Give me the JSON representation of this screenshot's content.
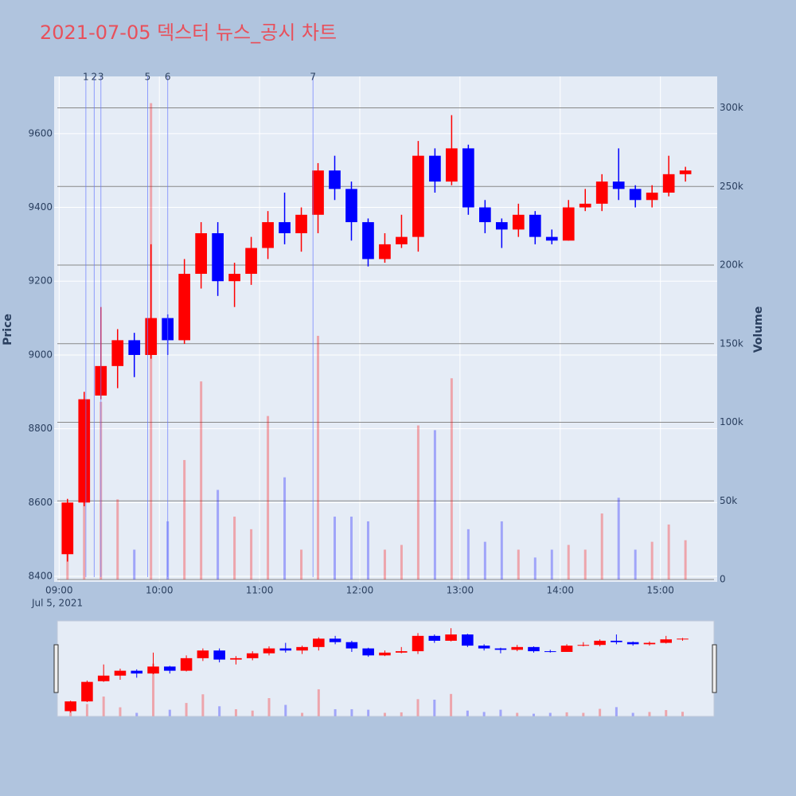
{
  "chart_data": {
    "type": "candlestick",
    "title": "2021-07-05 덱스터 뉴스_공시 차트",
    "x": [
      "09:00",
      "09:10",
      "09:20",
      "09:30",
      "09:40",
      "09:50",
      "10:00",
      "10:10",
      "10:20",
      "10:30",
      "10:40",
      "10:50",
      "11:00",
      "11:10",
      "11:20",
      "11:30",
      "11:40",
      "11:50",
      "12:00",
      "12:10",
      "12:20",
      "12:30",
      "12:40",
      "12:50",
      "13:00",
      "13:10",
      "13:20",
      "13:30",
      "13:40",
      "13:50",
      "14:00",
      "14:10",
      "14:20",
      "14:30",
      "14:40",
      "14:50",
      "15:00",
      "15:10"
    ],
    "open": [
      8460,
      8600,
      8890,
      8970,
      9040,
      9000,
      9100,
      9040,
      9220,
      9330,
      9200,
      9220,
      9290,
      9360,
      9330,
      9380,
      9500,
      9450,
      9360,
      9260,
      9300,
      9320,
      9540,
      9470,
      9560,
      9400,
      9360,
      9340,
      9380,
      9320,
      9310,
      9400,
      9410,
      9470,
      9450,
      9420,
      9440,
      9490
    ],
    "high": [
      8610,
      8900,
      9130,
      9070,
      9060,
      9300,
      9110,
      9260,
      9360,
      9360,
      9250,
      9320,
      9390,
      9440,
      9400,
      9520,
      9540,
      9470,
      9370,
      9330,
      9380,
      9580,
      9560,
      9650,
      9570,
      9420,
      9370,
      9410,
      9390,
      9340,
      9420,
      9450,
      9490,
      9560,
      9460,
      9460,
      9540,
      9510
    ],
    "low": [
      8440,
      8590,
      8880,
      8910,
      8940,
      8990,
      9000,
      9030,
      9180,
      9160,
      9130,
      9190,
      9260,
      9300,
      9280,
      9330,
      9420,
      9310,
      9240,
      9250,
      9290,
      9280,
      9440,
      9460,
      9380,
      9330,
      9290,
      9320,
      9300,
      9300,
      9310,
      9390,
      9390,
      9420,
      9400,
      9400,
      9430,
      9470
    ],
    "close": [
      8600,
      8880,
      8970,
      9040,
      9000,
      9100,
      9040,
      9220,
      9330,
      9200,
      9220,
      9290,
      9360,
      9330,
      9380,
      9500,
      9450,
      9360,
      9260,
      9300,
      9320,
      9540,
      9470,
      9560,
      9400,
      9360,
      9340,
      9380,
      9320,
      9310,
      9400,
      9410,
      9470,
      9450,
      9420,
      9440,
      9490,
      9500
    ],
    "volume": [
      34000,
      70000,
      113000,
      51000,
      19000,
      303000,
      37000,
      76000,
      126000,
      57000,
      40000,
      32000,
      104000,
      65000,
      19000,
      155000,
      40000,
      40000,
      37000,
      19000,
      22000,
      98000,
      95000,
      128000,
      32000,
      24000,
      37000,
      19000,
      14000,
      19000,
      22000,
      19000,
      42000,
      52000,
      19000,
      24000,
      35000,
      25000
    ],
    "increasing_color": "#ff0000",
    "decreasing_color": "#0000ff",
    "xlim": [
      "08:57",
      "15:34"
    ],
    "xticks": [
      "09:00",
      "10:00",
      "11:00",
      "12:00",
      "13:00",
      "14:00",
      "15:00"
    ],
    "x_date_label": "Jul 5, 2021",
    "ylim": [
      8385,
      9755
    ],
    "yticks": [
      8400,
      8600,
      8800,
      9000,
      9200,
      9400,
      9600
    ],
    "ylabel": "Price",
    "y2lim": [
      -1500,
      320000
    ],
    "y2ticks": [
      0,
      {
        "value": 50000,
        "label": "50k"
      },
      {
        "value": 100000,
        "label": "100k"
      },
      {
        "value": 150000,
        "label": "150k"
      },
      {
        "value": 200000,
        "label": "200k"
      },
      {
        "value": 250000,
        "label": "250k"
      },
      {
        "value": 300000,
        "label": "300k"
      }
    ],
    "y2label": "Volume",
    "annotations": [
      {
        "x": "09:16",
        "label": "1"
      },
      {
        "x": "09:21",
        "label": "2"
      },
      {
        "x": "09:25",
        "label": "3"
      },
      {
        "x": "09:53",
        "label": "5"
      },
      {
        "x": "10:05",
        "label": "6"
      },
      {
        "x": "11:32",
        "label": "7"
      }
    ]
  }
}
